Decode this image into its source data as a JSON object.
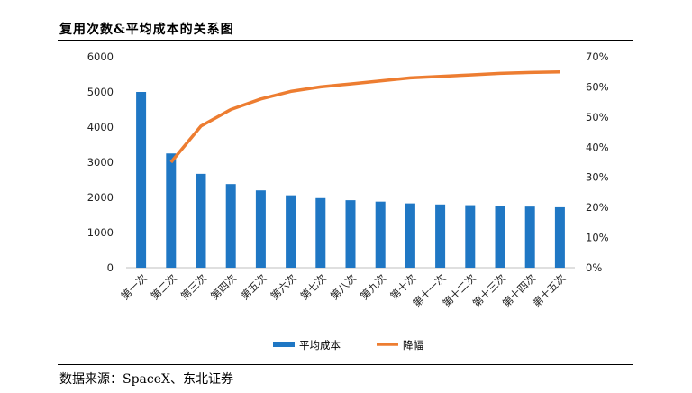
{
  "header": {
    "title": "复用次数&平均成本的关系图"
  },
  "footer": {
    "source": "数据来源：SpaceX、东北证券"
  },
  "chart_data": {
    "type": "bar",
    "categories": [
      "第一次",
      "第二次",
      "第三次",
      "第四次",
      "第五次",
      "第六次",
      "第七次",
      "第八次",
      "第九次",
      "第十次",
      "第十一次",
      "第十二次",
      "第十三次",
      "第十四次",
      "第十五次"
    ],
    "series": [
      {
        "name": "平均成本",
        "type": "bar",
        "axis": "left",
        "values": [
          5000,
          3250,
          2670,
          2380,
          2200,
          2060,
          1980,
          1920,
          1880,
          1830,
          1800,
          1780,
          1760,
          1740,
          1720
        ],
        "color": "#1f77c4"
      },
      {
        "name": "降幅",
        "type": "line",
        "axis": "right",
        "values": [
          null,
          35,
          47,
          52.5,
          56,
          58.5,
          60,
          61,
          62,
          63,
          63.5,
          64,
          64.5,
          64.8,
          65
        ],
        "color": "#ed7d31"
      }
    ],
    "left_axis": {
      "ylim": [
        0,
        6000
      ],
      "ticks": [
        "0",
        "1000",
        "2000",
        "3000",
        "4000",
        "5000",
        "6000"
      ]
    },
    "right_axis": {
      "ylim": [
        0,
        70
      ],
      "ticks": [
        "0%",
        "10%",
        "20%",
        "30%",
        "40%",
        "50%",
        "60%",
        "70%"
      ]
    },
    "legend_placement": "bottom-center",
    "grid": false
  }
}
